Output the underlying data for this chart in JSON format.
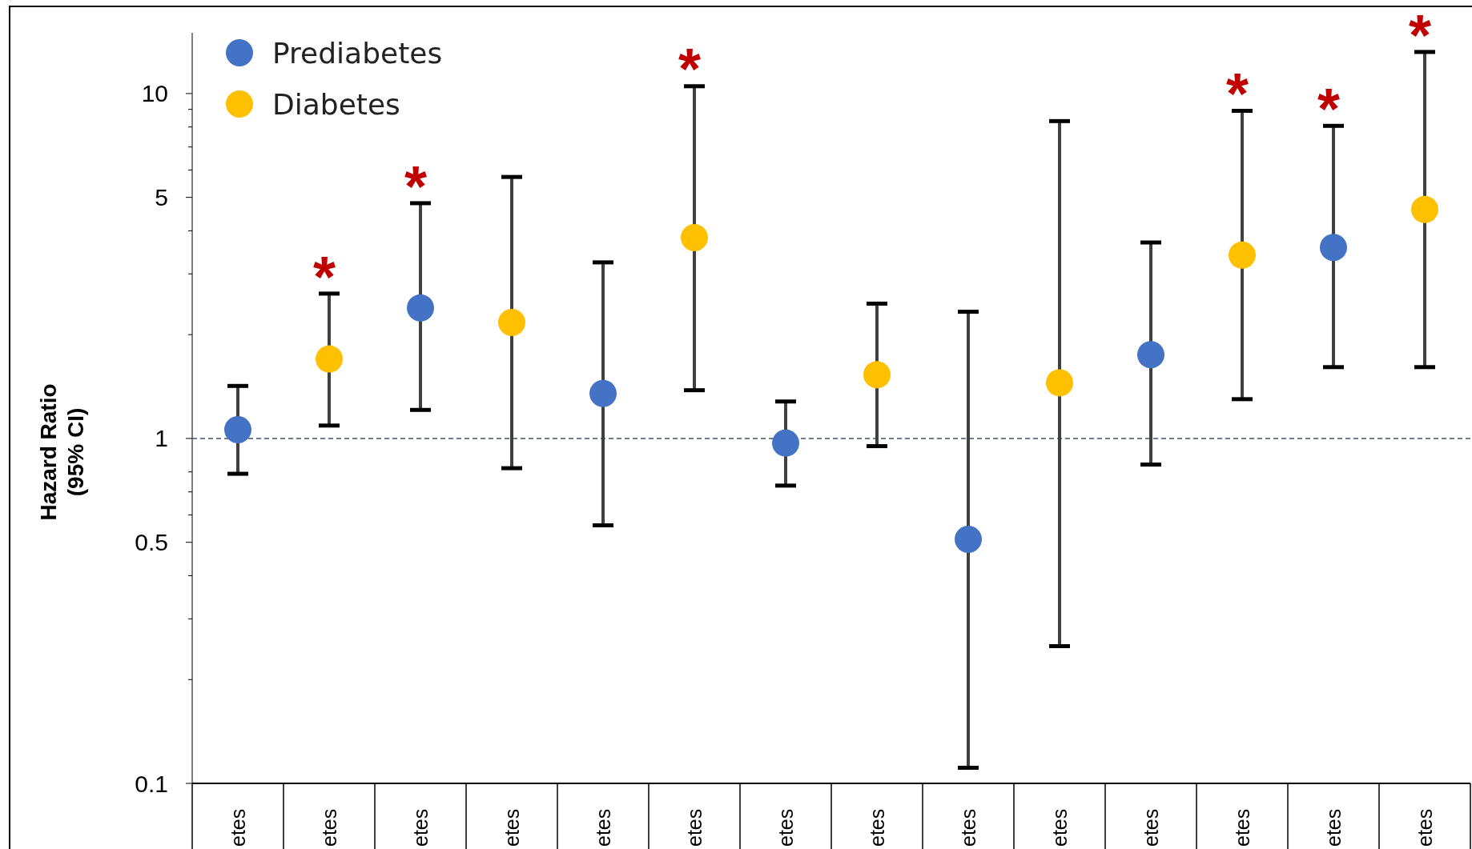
{
  "chart_data": {
    "type": "scatter",
    "ylabel": "Hazard Ratio\n(95% CI)",
    "log": true,
    "categories": [
      "etes",
      "etes",
      "etes",
      "etes",
      "etes",
      "etes",
      "etes",
      "etes",
      "etes",
      "etes",
      "etes",
      "etes",
      "etes",
      "etes"
    ],
    "ylim": [
      0.1,
      15
    ],
    "yticks": [
      0.1,
      {
        "value": 0.2,
        "label": null
      },
      {
        "value": 0.3,
        "label": null
      },
      {
        "value": 0.4,
        "label": null
      },
      0.5,
      {
        "value": 0.6,
        "label": null
      },
      {
        "value": 0.7,
        "label": null
      },
      {
        "value": 0.8,
        "label": null
      },
      1,
      {
        "value": 2,
        "label": null
      },
      {
        "value": 3,
        "label": null
      },
      {
        "value": 4,
        "label": null
      },
      5,
      {
        "value": 6,
        "label": null
      },
      {
        "value": 7,
        "label": null
      },
      {
        "value": 8,
        "label": null
      },
      {
        "value": 9,
        "label": null
      },
      10
    ],
    "marker": "circle",
    "legend": "top left",
    "grid": false,
    "series": [
      {
        "name": "Prediabetes",
        "color": "#4472c4",
        "values": [
          1.06,
          null,
          2.39,
          null,
          1.35,
          null,
          0.97,
          null,
          0.51,
          null,
          1.75,
          null,
          3.58,
          null
        ],
        "errors": [
          [
            0.79,
            1.42
          ],
          null,
          [
            1.21,
            4.81
          ],
          null,
          [
            0.56,
            3.24
          ],
          null,
          [
            0.73,
            1.28
          ],
          null,
          [
            0.111,
            2.33
          ],
          null,
          [
            0.84,
            3.7
          ],
          null,
          [
            1.61,
            8.06
          ],
          null
        ]
      },
      {
        "name": "Diabetes",
        "color": "#ffc000",
        "values": [
          null,
          1.7,
          null,
          2.17,
          null,
          3.82,
          null,
          1.53,
          null,
          1.45,
          null,
          3.4,
          null,
          4.61
        ],
        "errors": [
          null,
          [
            1.09,
            2.63
          ],
          null,
          [
            0.82,
            5.73
          ],
          null,
          [
            1.38,
            10.5
          ],
          null,
          [
            0.95,
            2.46
          ],
          null,
          [
            0.25,
            8.32
          ],
          null,
          [
            1.3,
            8.91
          ],
          null,
          [
            1.61,
            13.2
          ]
        ]
      }
    ],
    "ref_lines": [
      {
        "axis": "y",
        "value": 1,
        "color": "#44546a",
        "line_style": "dashed"
      }
    ],
    "annotations": [
      {
        "text": "*",
        "y": 2.63
      },
      {
        "text": "*",
        "y": 4.81
      },
      {
        "text": "*",
        "y": 10.5
      },
      {
        "text": "*",
        "y": 8.91
      },
      {
        "text": "*",
        "y": 8.06
      },
      {
        "text": "*",
        "y": 13.2
      }
    ]
  }
}
